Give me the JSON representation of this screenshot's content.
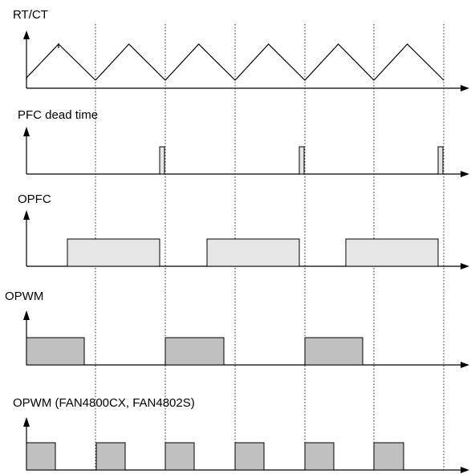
{
  "diagram": {
    "signals": [
      {
        "id": "rtct",
        "label": "RT/CT",
        "kind": "sawtooth",
        "periods": 6
      },
      {
        "id": "pfc-dead-time",
        "label": "PFC dead time",
        "kind": "pulses",
        "fill": "#e6e6e6"
      },
      {
        "id": "opfc",
        "label": "OPFC",
        "kind": "pulses",
        "fill": "#e6e6e6"
      },
      {
        "id": "opwm",
        "label": "OPWM",
        "kind": "pulses",
        "fill": "#c0c0c0"
      },
      {
        "id": "opwm-cx",
        "label": "OPWM (FAN4800CX, FAN4802S)",
        "kind": "pulses",
        "fill": "#c0c0c0"
      }
    ],
    "colors": {
      "line": "#000000",
      "light_fill": "#e6e6e6",
      "dark_fill": "#c0c0c0"
    }
  }
}
